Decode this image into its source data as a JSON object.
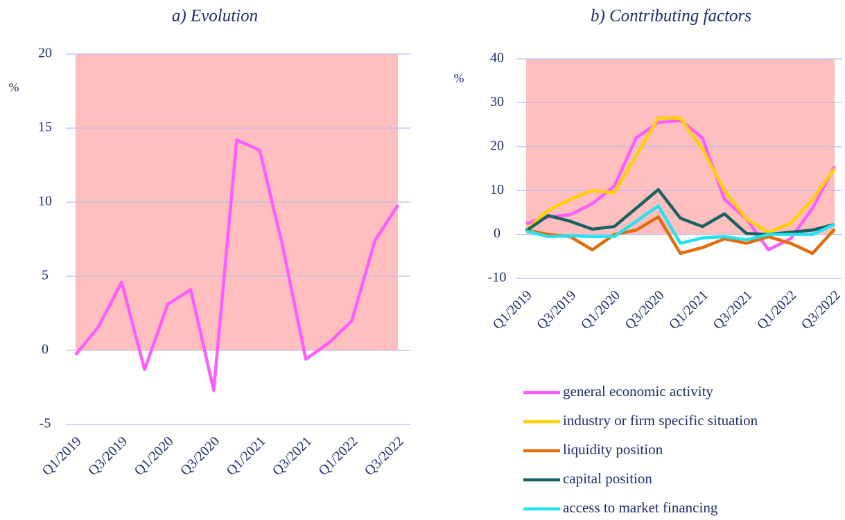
{
  "chart_data": [
    {
      "type": "line",
      "title": "a) Evolution",
      "ylabel": "%",
      "categories": [
        "Q1/2019",
        null,
        "Q3/2019",
        null,
        "Q1/2020",
        null,
        "Q3/2020",
        null,
        "Q1/2021",
        null,
        "Q3/2021",
        null,
        "Q1/2022",
        null,
        "Q3/2022"
      ],
      "series": [
        {
          "name": null,
          "color": "#ff5cff",
          "values": [
            -0.3,
            1.6,
            4.6,
            -1.3,
            3.1,
            4.1,
            -2.7,
            14.2,
            13.5,
            7.0,
            -0.6,
            0.5,
            2.0,
            7.4,
            9.8
          ]
        }
      ],
      "ylim": [
        -5,
        20
      ],
      "yticks": [
        -5,
        0,
        5,
        10,
        15,
        20
      ],
      "grid": true,
      "shade_ylim": [
        0,
        20
      ],
      "shade_color": "#ffbfbf",
      "legend": false
    },
    {
      "type": "line",
      "title": "b) Contributing factors",
      "ylabel": "%",
      "categories": [
        "Q1/2019",
        null,
        "Q3/2019",
        null,
        "Q1/2020",
        null,
        "Q3/2020",
        null,
        "Q1/2021",
        null,
        "Q3/2021",
        null,
        "Q1/2022",
        null,
        "Q3/2022"
      ],
      "series": [
        {
          "name": "general economic activity",
          "color": "#ff5cff",
          "values": [
            2.5,
            4,
            4.5,
            7,
            11,
            22,
            25.5,
            26,
            22,
            8,
            3.5,
            -3.5,
            -1,
            6,
            15.5
          ]
        },
        {
          "name": "industry or firm specific situation",
          "color": "#ffd000",
          "values": [
            1,
            5.5,
            8,
            10,
            9.5,
            18,
            26.5,
            26.5,
            19.5,
            10,
            3.5,
            0.5,
            2.5,
            8,
            15
          ]
        },
        {
          "name": "liquidity position",
          "color": "#e36c0a",
          "values": [
            1,
            0,
            -0.5,
            -3.5,
            0,
            1,
            4,
            -4.3,
            -3,
            -1,
            -2,
            -0.5,
            -2,
            -4.3,
            1.2
          ]
        },
        {
          "name": "capital position",
          "color": "#1a6262",
          "values": [
            0.8,
            4.3,
            3,
            1.2,
            1.8,
            6,
            10.2,
            3.7,
            1.8,
            4.7,
            0.2,
            0,
            0.5,
            1,
            2.3
          ]
        },
        {
          "name": "access to market financing",
          "color": "#22e3f0",
          "values": [
            0.8,
            -0.5,
            -0.3,
            -0.5,
            -0.5,
            3,
            6.5,
            -2,
            -0.8,
            -0.5,
            -1.2,
            0,
            0,
            0,
            2.3
          ]
        }
      ],
      "ylim": [
        -10,
        40
      ],
      "yticks": [
        -10,
        0,
        10,
        20,
        30,
        40
      ],
      "grid": true,
      "shade_ylim": [
        0,
        40
      ],
      "shade_color": "#ffbfbf",
      "legend": "below"
    }
  ]
}
